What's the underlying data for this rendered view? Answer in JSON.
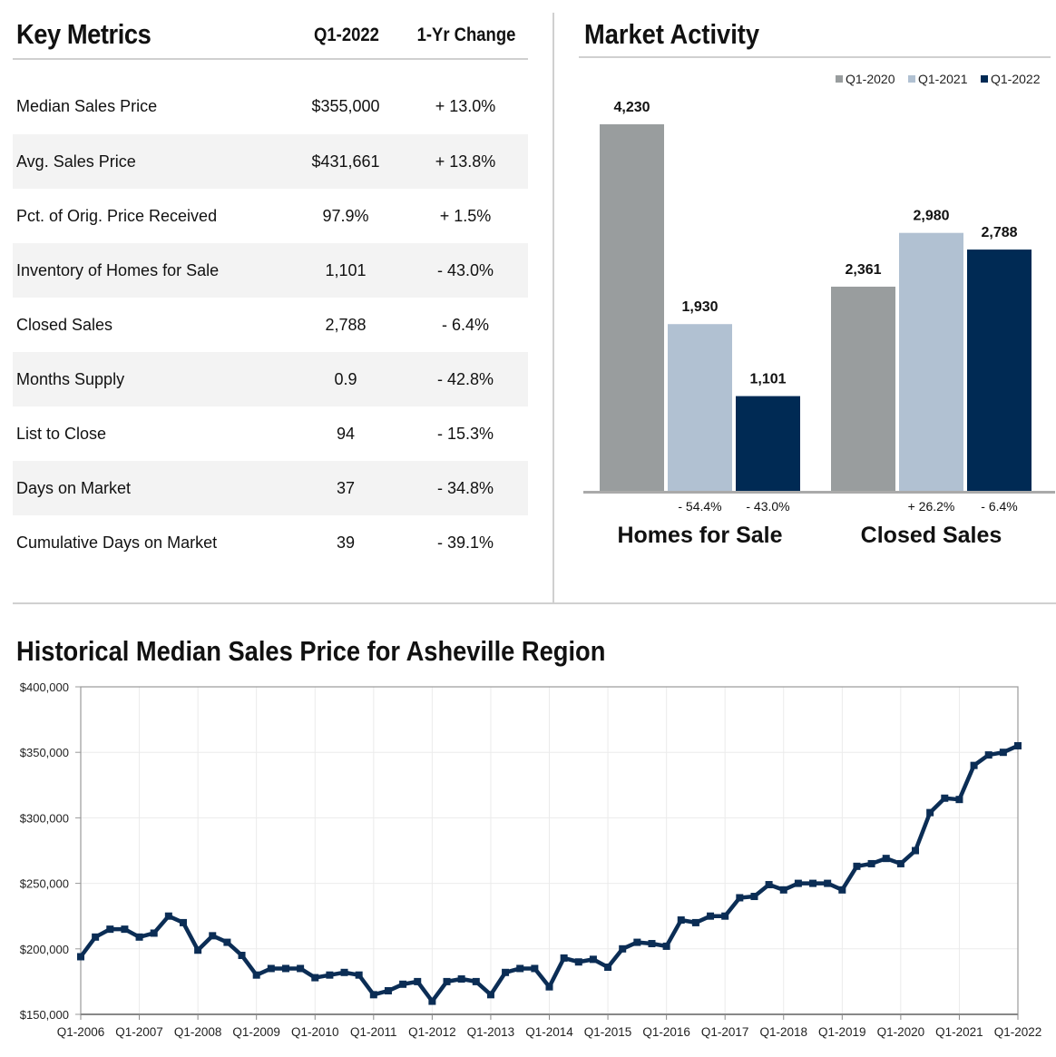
{
  "key_metrics": {
    "title": "Key Metrics",
    "col_value": "Q1-2022",
    "col_change": "1-Yr Change",
    "rows": [
      {
        "label": "Median Sales Price",
        "value": "$355,000",
        "change": "+ 13.0%"
      },
      {
        "label": "Avg. Sales Price",
        "value": "$431,661",
        "change": "+ 13.8%"
      },
      {
        "label": "Pct. of Orig. Price Received",
        "value": "97.9%",
        "change": "+ 1.5%"
      },
      {
        "label": "Inventory of Homes for Sale",
        "value": "1,101",
        "change": "- 43.0%"
      },
      {
        "label": "Closed Sales",
        "value": "2,788",
        "change": "- 6.4%"
      },
      {
        "label": "Months Supply",
        "value": "0.9",
        "change": "- 42.8%"
      },
      {
        "label": "List to Close",
        "value": "94",
        "change": "- 15.3%"
      },
      {
        "label": "Days on Market",
        "value": "37",
        "change": "- 34.8%"
      },
      {
        "label": "Cumulative Days on Market",
        "value": "39",
        "change": "- 39.1%"
      }
    ]
  },
  "market_activity": {
    "title": "Market Activity"
  },
  "historical": {
    "title": "Historical Median Sales Price for Asheville Region"
  },
  "chart_data": [
    {
      "type": "bar",
      "title": "Market Activity",
      "categories": [
        "Homes for Sale",
        "Closed Sales"
      ],
      "series": [
        {
          "name": "Q1-2020",
          "color": "#999d9e",
          "values": [
            4230,
            2361
          ],
          "labels": [
            "4,230",
            "2,361"
          ]
        },
        {
          "name": "Q1-2021",
          "color": "#b1c1d2",
          "values": [
            1930,
            2980
          ],
          "labels": [
            "1,930",
            "2,980"
          ]
        },
        {
          "name": "Q1-2022",
          "color": "#002a54",
          "values": [
            1101,
            2788
          ],
          "labels": [
            "1,101",
            "2,788"
          ]
        }
      ],
      "change_annotations": [
        [
          "- 54.4%",
          "- 43.0%"
        ],
        [
          "+ 26.2%",
          "- 6.4%"
        ]
      ],
      "ylim": [
        0,
        4500
      ],
      "legend": "top-right"
    },
    {
      "type": "line",
      "title": "Historical Median Sales Price for Asheville Region",
      "series_color": "#0b2d55",
      "ylim": [
        150000,
        400000
      ],
      "yticks": [
        150000,
        200000,
        250000,
        300000,
        350000,
        400000
      ],
      "ytick_labels": [
        "$150,000",
        "$200,000",
        "$250,000",
        "$300,000",
        "$350,000",
        "$400,000"
      ],
      "xtick_labels": [
        "Q1-2006",
        "Q1-2007",
        "Q1-2008",
        "Q1-2009",
        "Q1-2010",
        "Q1-2011",
        "Q1-2012",
        "Q1-2013",
        "Q1-2014",
        "Q1-2015",
        "Q1-2016",
        "Q1-2017",
        "Q1-2018",
        "Q1-2019",
        "Q1-2020",
        "Q1-2021",
        "Q1-2022"
      ],
      "values": [
        194000,
        209000,
        215000,
        215000,
        209000,
        212000,
        225000,
        220000,
        199000,
        210000,
        205000,
        195000,
        180000,
        185000,
        185000,
        185000,
        178000,
        180000,
        182000,
        180000,
        165000,
        168000,
        173000,
        175000,
        160000,
        175000,
        177000,
        175000,
        165000,
        182000,
        185000,
        185000,
        171000,
        193000,
        190000,
        192000,
        186000,
        200000,
        205000,
        204000,
        202000,
        222000,
        220000,
        225000,
        225000,
        239000,
        240000,
        249000,
        245000,
        250000,
        250000,
        250000,
        245000,
        263000,
        265000,
        269000,
        265000,
        275000,
        304000,
        315000,
        314000,
        340000,
        348000,
        350000,
        355000
      ]
    }
  ]
}
